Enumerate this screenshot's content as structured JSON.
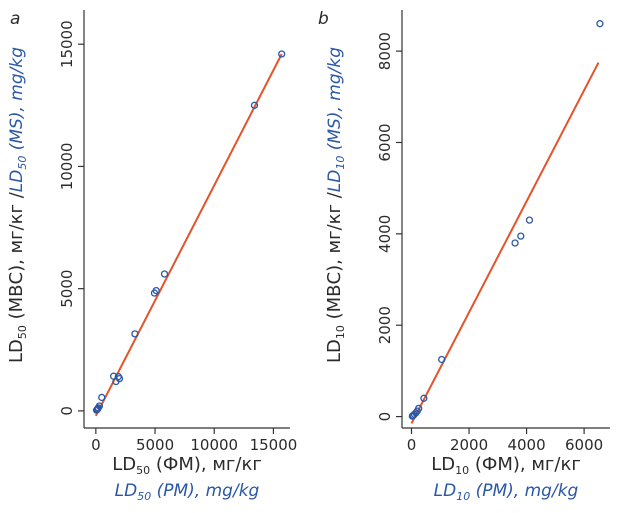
{
  "chart_data": [
    {
      "type": "scatter",
      "panel_label": "a",
      "xlabel": {
        "prefix": "LD",
        "sub": "50",
        "rest": " (ФМ), мг/кг"
      },
      "xlabel_en": {
        "prefix": "LD",
        "sub": "50",
        "rest": " (PM), mg/kg"
      },
      "ylabel": {
        "prefix": "LD",
        "sub": "50",
        "rest": " (МВС), мг/кг / "
      },
      "ylabel_en": {
        "prefix": "LD",
        "sub": "50",
        "rest": " (MS), mg/kg"
      },
      "xlim": [
        -1000,
        16400
      ],
      "ylim": [
        -700,
        16400
      ],
      "xticks": [
        0,
        5000,
        10000,
        15000
      ],
      "yticks": [
        0,
        5000,
        10000,
        15000
      ],
      "fit_line": {
        "x": [
          0,
          15700
        ],
        "y": [
          -200,
          14600
        ]
      },
      "points": [
        {
          "x": 15700,
          "y": 14600
        },
        {
          "x": 13400,
          "y": 12500
        },
        {
          "x": 5800,
          "y": 5600
        },
        {
          "x": 5100,
          "y": 4920
        },
        {
          "x": 4950,
          "y": 4820
        },
        {
          "x": 3300,
          "y": 3150
        },
        {
          "x": 1900,
          "y": 1400
        },
        {
          "x": 1700,
          "y": 1200
        },
        {
          "x": 2000,
          "y": 1320
        },
        {
          "x": 1500,
          "y": 1420
        },
        {
          "x": 500,
          "y": 550
        },
        {
          "x": 300,
          "y": 200
        },
        {
          "x": 200,
          "y": 120
        },
        {
          "x": 150,
          "y": 80
        },
        {
          "x": 100,
          "y": 50
        },
        {
          "x": 60,
          "y": 30
        }
      ]
    },
    {
      "type": "scatter",
      "panel_label": "b",
      "xlabel": {
        "prefix": "LD",
        "sub": "10",
        "rest": " (ФМ), мг/кг"
      },
      "xlabel_en": {
        "prefix": "LD",
        "sub": "10",
        "rest": " (PM), mg/kg"
      },
      "ylabel": {
        "prefix": "LD",
        "sub": "10",
        "rest": " (МВС), мг/кг / "
      },
      "ylabel_en": {
        "prefix": "LD",
        "sub": "10",
        "rest": " (MS), mg/kg"
      },
      "xlim": [
        -330,
        6900
      ],
      "ylim": [
        -250,
        8900
      ],
      "xticks": [
        0,
        2000,
        4000,
        6000
      ],
      "yticks": [
        0,
        2000,
        4000,
        6000,
        8000
      ],
      "fit_line": {
        "x": [
          0,
          6500
        ],
        "y": [
          -150,
          7750
        ]
      },
      "points": [
        {
          "x": 6550,
          "y": 8600
        },
        {
          "x": 4100,
          "y": 4300
        },
        {
          "x": 3800,
          "y": 3950
        },
        {
          "x": 3600,
          "y": 3800
        },
        {
          "x": 1050,
          "y": 1250
        },
        {
          "x": 430,
          "y": 400
        },
        {
          "x": 250,
          "y": 180
        },
        {
          "x": 200,
          "y": 120
        },
        {
          "x": 150,
          "y": 80
        },
        {
          "x": 100,
          "y": 50
        },
        {
          "x": 60,
          "y": 25
        },
        {
          "x": 30,
          "y": 10
        }
      ]
    }
  ],
  "colors": {
    "fit_line": "#e2542a",
    "points": "#2a57a6",
    "axis": "#333333",
    "english_label": "#2a57a6"
  }
}
